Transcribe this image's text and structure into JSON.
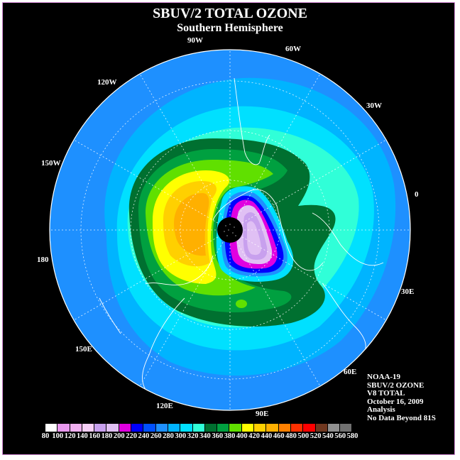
{
  "title": "SBUV/2 TOTAL OZONE",
  "subtitle": "Southern Hemisphere",
  "longitude_labels": [
    {
      "id": "90w",
      "text": "90W"
    },
    {
      "id": "60w",
      "text": "60W"
    },
    {
      "id": "120w",
      "text": "120W"
    },
    {
      "id": "30w",
      "text": "30W"
    },
    {
      "id": "150w",
      "text": "150W"
    },
    {
      "id": "0",
      "text": "0"
    },
    {
      "id": "180",
      "text": "180"
    },
    {
      "id": "30e",
      "text": "30E"
    },
    {
      "id": "150e",
      "text": "150E"
    },
    {
      "id": "60e",
      "text": "60E"
    },
    {
      "id": "120e",
      "text": "120E"
    },
    {
      "id": "90e",
      "text": "90E"
    }
  ],
  "info": {
    "satellite": "NOAA-19",
    "product": "SBUV/2 OZONE",
    "version": "V8 TOTAL",
    "date": "October 16, 2009",
    "type": "Analysis",
    "note": "No Data Beyond 81S"
  },
  "colorbar": {
    "unit_values": [
      "80",
      "100",
      "120",
      "140",
      "160",
      "180",
      "200",
      "220",
      "240",
      "260",
      "280",
      "300",
      "320",
      "340",
      "360",
      "380",
      "400",
      "420",
      "440",
      "460",
      "480",
      "500",
      "520",
      "540",
      "560",
      "580"
    ],
    "colors": [
      "#ffffff",
      "#e898ee",
      "#f0b0f0",
      "#f8d0f8",
      "#c8a0ee",
      "#e0c0f4",
      "#e000e0",
      "#0000ff",
      "#0050ff",
      "#1e90ff",
      "#00b4ff",
      "#00e0ff",
      "#30ffd8",
      "#007030",
      "#00a040",
      "#60e000",
      "#ffff00",
      "#ffd000",
      "#ffb000",
      "#ff8000",
      "#ff3000",
      "#ff0000",
      "#703820",
      "#909090",
      "#707070",
      "#505050"
    ]
  },
  "colors": {
    "background": "#000000",
    "ocean_base": "#1e90ff",
    "polar_cap": "#000000"
  }
}
